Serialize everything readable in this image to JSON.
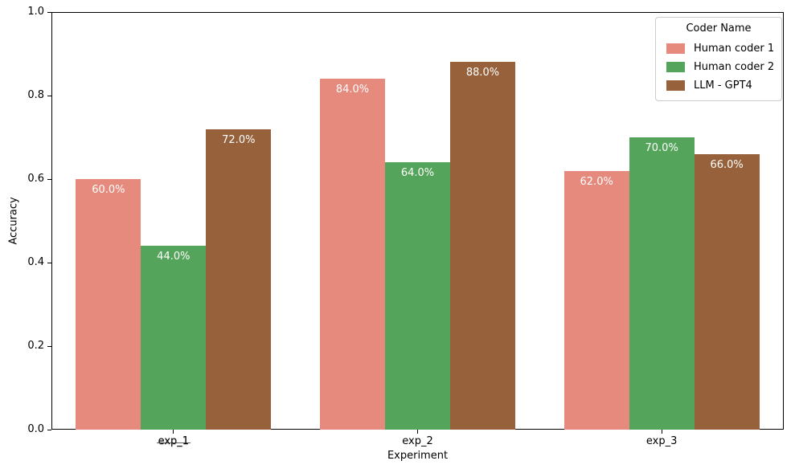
{
  "chart_data": {
    "type": "bar",
    "title": "",
    "xlabel": "Experiment",
    "ylabel": "Accuracy",
    "categories": [
      "exp_1",
      "exp_2",
      "exp_3"
    ],
    "series": [
      {
        "name": "Human coder 1",
        "color": "#e58a7c",
        "values": [
          0.6,
          0.84,
          0.62
        ],
        "labels": [
          "60.0%",
          "84.0%",
          "62.0%"
        ]
      },
      {
        "name": "Human coder 2",
        "color": "#55a45b",
        "values": [
          0.44,
          0.64,
          0.7
        ],
        "labels": [
          "44.0%",
          "64.0%",
          "70.0%"
        ]
      },
      {
        "name": "LLM - GPT4",
        "color": "#96613b",
        "values": [
          0.72,
          0.88,
          0.66
        ],
        "labels": [
          "72.0%",
          "88.0%",
          "66.0%"
        ]
      }
    ],
    "ylim": [
      0.0,
      1.0
    ],
    "yticks": [
      "0.0",
      "0.2",
      "0.4",
      "0.6",
      "0.8",
      "1.0"
    ],
    "grid": false,
    "bar_label_color": "#ffffff",
    "legend": {
      "title": "Coder Name",
      "position": "upper right"
    }
  }
}
